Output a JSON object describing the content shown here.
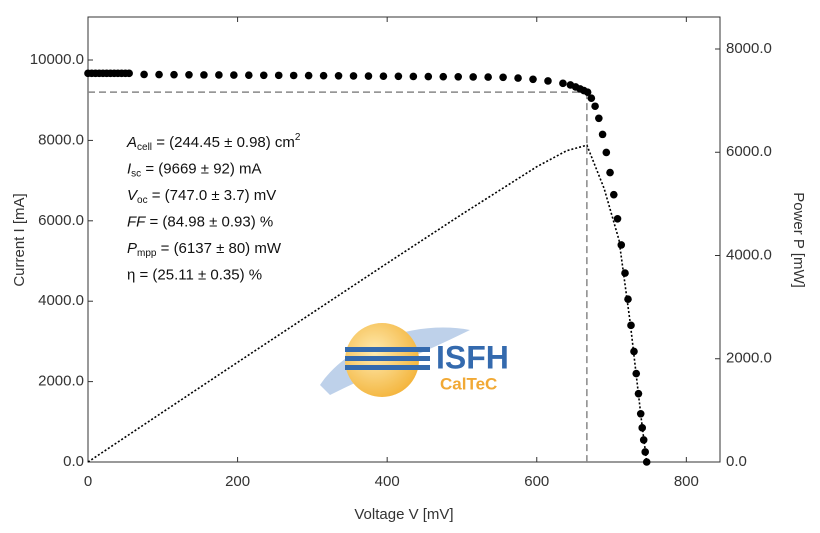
{
  "chart_data": {
    "type": "scatter",
    "x_label": "Voltage V [mV]",
    "y_label": "Current I [mA]",
    "y2_label": "Power P [mW]",
    "xlim": [
      0,
      845
    ],
    "xticks": [
      0,
      200,
      400,
      600,
      800
    ],
    "ylim": [
      0,
      11070
    ],
    "yticks": [
      {
        "value": 0,
        "label": "0.0"
      },
      {
        "value": 2000,
        "label": "2000.0"
      },
      {
        "value": 4000,
        "label": "4000.0"
      },
      {
        "value": 6000,
        "label": "6000.0"
      },
      {
        "value": 8000,
        "label": "8000.0"
      },
      {
        "value": 10000,
        "label": "10000.0"
      }
    ],
    "y2lim": [
      0,
      8620
    ],
    "y2ticks": [
      {
        "value": 0,
        "label": "0.0"
      },
      {
        "value": 2000,
        "label": "2000.0"
      },
      {
        "value": 4000,
        "label": "4000.0"
      },
      {
        "value": 6000,
        "label": "6000.0"
      },
      {
        "value": 8000,
        "label": "8000.0"
      }
    ],
    "series": [
      {
        "style": "dots",
        "color": "#000000",
        "x": [
          0,
          5,
          10,
          15,
          20,
          25,
          30,
          35,
          40,
          45,
          50,
          55,
          75,
          95,
          115,
          135,
          155,
          175,
          195,
          215,
          235,
          255,
          275,
          295,
          315,
          335,
          355,
          375,
          395,
          415,
          435,
          455,
          475,
          495,
          515,
          535,
          555,
          575,
          595,
          615,
          635,
          645,
          652,
          658,
          663,
          668,
          673,
          678,
          683,
          688,
          693,
          698,
          703,
          708,
          713,
          718,
          722,
          726,
          730,
          733,
          736,
          739,
          741,
          743,
          745,
          747
        ],
        "values": [
          9669,
          9669,
          9669,
          9669,
          9669,
          9669,
          9669,
          9669,
          9669,
          9669,
          9669,
          9669,
          9640,
          9638,
          9635,
          9632,
          9630,
          9628,
          9625,
          9622,
          9620,
          9618,
          9615,
          9612,
          9610,
          9607,
          9604,
          9601,
          9598,
          9595,
          9592,
          9589,
          9586,
          9583,
          9580,
          9575,
          9570,
          9550,
          9520,
          9480,
          9420,
          9380,
          9330,
          9280,
          9240,
          9200,
          9050,
          8850,
          8550,
          8150,
          7700,
          7200,
          6650,
          6050,
          5400,
          4700,
          4050,
          3400,
          2750,
          2200,
          1700,
          1200,
          850,
          550,
          250,
          0
        ]
      },
      {
        "style": "dotted-line",
        "color": "#000000",
        "axis": "y2",
        "x": [
          0,
          100,
          200,
          300,
          400,
          500,
          600,
          640,
          667,
          690,
          710,
          725,
          740,
          747
        ],
        "values": [
          0,
          967,
          1932,
          2890,
          3850,
          4800,
          5720,
          6030,
          6137,
          5300,
          4300,
          2700,
          800,
          0
        ]
      }
    ],
    "mpp": {
      "voltage": 667,
      "current": 9200,
      "color": "#888888"
    },
    "annotations": [
      {
        "symbol": "A",
        "sub": "cell",
        "text": " = (244.45 ± 0.98) cm",
        "sup": "2"
      },
      {
        "symbol": "I",
        "sub": "sc",
        "text": " = (9669 ± 92) mA"
      },
      {
        "symbol": "V",
        "sub": "oc",
        "text": " = (747.0 ± 3.7) mV"
      },
      {
        "symbol": "FF",
        "text": " = (84.98 ± 0.93) %"
      },
      {
        "symbol": "P",
        "sub": "mpp",
        "text": " = (6137 ± 80) mW"
      },
      {
        "text": "η = (25.11 ± 0.35) %"
      }
    ],
    "logo": {
      "name": "ISFH",
      "subtitle": "CalTeC"
    }
  }
}
